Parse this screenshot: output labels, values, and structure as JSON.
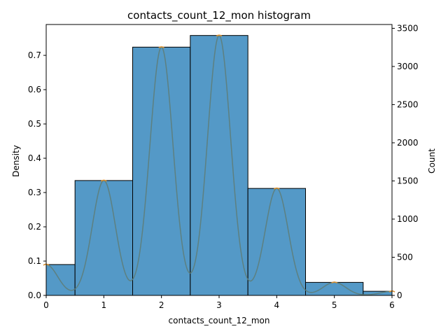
{
  "chart_data": {
    "type": "bar",
    "title": "contacts_count_12_mon histogram",
    "xlabel": "contacts_count_12_mon",
    "ylabel_left": "Density",
    "ylabel_right": "Count",
    "xlim": [
      0,
      6
    ],
    "ylim_left": [
      0,
      0.79
    ],
    "ylim_right": [
      0,
      3550
    ],
    "x_ticks": [
      0,
      1,
      2,
      3,
      4,
      5,
      6
    ],
    "y_ticks_left": [
      0.0,
      0.1,
      0.2,
      0.3,
      0.4,
      0.5,
      0.6,
      0.7
    ],
    "y_ticks_right": [
      0,
      500,
      1000,
      1500,
      2000,
      2500,
      3000,
      3500
    ],
    "bins": [
      {
        "from": 0.0,
        "to": 0.5,
        "density": 0.09
      },
      {
        "from": 0.5,
        "to": 1.5,
        "density": 0.335
      },
      {
        "from": 1.5,
        "to": 2.5,
        "density": 0.724
      },
      {
        "from": 2.5,
        "to": 3.5,
        "density": 0.758
      },
      {
        "from": 3.5,
        "to": 4.5,
        "density": 0.312
      },
      {
        "from": 4.5,
        "to": 5.5,
        "density": 0.038
      },
      {
        "from": 5.5,
        "to": 6.0,
        "density": 0.012
      }
    ],
    "kde_peaks": [
      {
        "x": 0,
        "density": 0.09
      },
      {
        "x": 1,
        "density": 0.335
      },
      {
        "x": 2,
        "density": 0.724
      },
      {
        "x": 3,
        "density": 0.758
      },
      {
        "x": 4,
        "density": 0.312
      },
      {
        "x": 5,
        "density": 0.038
      },
      {
        "x": 6,
        "density": 0.012
      }
    ],
    "bar_color": "#5499c7",
    "bar_edge_color": "#000000",
    "kde_color": "#5e7d78",
    "kde_peak_color": "#d98d2b",
    "grid": false
  }
}
